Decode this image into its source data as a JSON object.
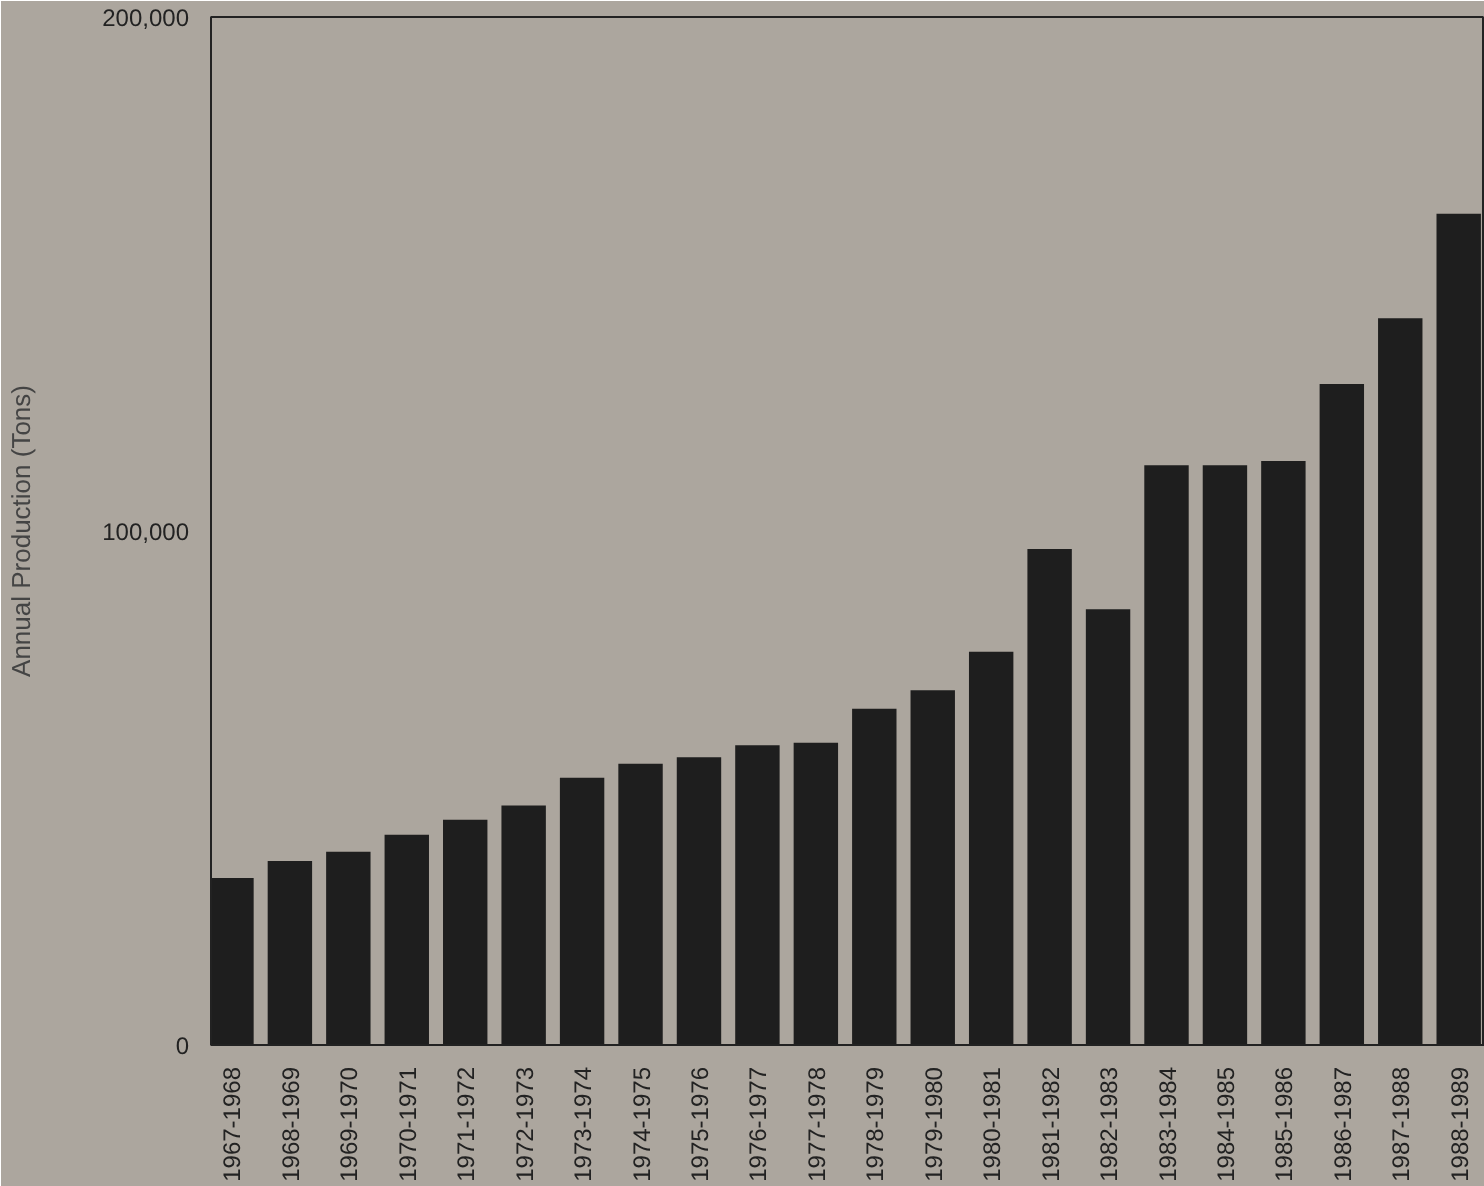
{
  "chart_data": {
    "type": "bar",
    "ylabel": "Annual Production (Tons)",
    "categories": [
      "1967-1968",
      "1968-1969",
      "1969-1970",
      "1970-1971",
      "1971-1972",
      "1972-1973",
      "1973-1974",
      "1974-1975",
      "1975-1976",
      "1976-1977",
      "1977-1978",
      "1978-1979",
      "1979-1980",
      "1980-1981",
      "1981-1982",
      "1982-1983",
      "1983-1984",
      "1984-1985",
      "1985-1986",
      "1986-1987",
      "1987-1988",
      "1988-1989"
    ],
    "values": [
      32500,
      35800,
      37600,
      40900,
      43800,
      46600,
      52000,
      54700,
      56000,
      58300,
      58800,
      65400,
      69000,
      76500,
      96500,
      84800,
      112800,
      112800,
      113600,
      128600,
      141400,
      161700
    ],
    "color": "#1e1e1e",
    "ylim": [
      0,
      200000
    ],
    "yticks": [
      {
        "value": 0,
        "label": "0"
      },
      {
        "value": 100000,
        "label": "100,000"
      },
      {
        "value": 200000,
        "label": "200,000"
      }
    ],
    "grid": false
  }
}
